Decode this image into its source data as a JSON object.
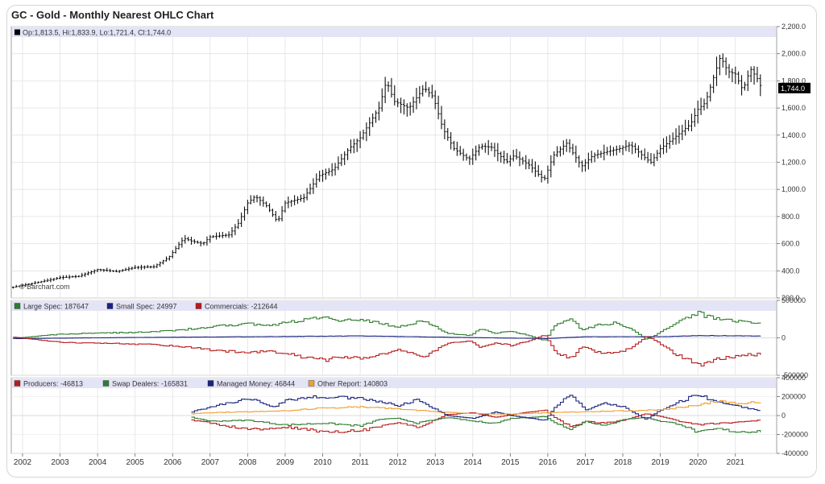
{
  "page_title": "GC - Gold - Monthly Nearest OHLC Chart",
  "chart_data": [
    {
      "type": "ohlc",
      "title": "GC - Gold - Monthly Nearest OHLC Chart",
      "legend": {
        "label": "Op:1,813.5, Hi:1,833.9, Lo:1,721.4, Cl:1,744.0",
        "color": "#000000"
      },
      "last_price_label": "1,744.0",
      "watermark": "© Barchart.com",
      "ylim": [
        200,
        2200
      ],
      "y_ticks": [
        "200.0",
        "400.0",
        "600.0",
        "800.0",
        "1,000.0",
        "1,200.0",
        "1,400.0",
        "1,600.0",
        "1,800.0",
        "2,000.0",
        "2,200.0"
      ],
      "x_ticks": [
        "2002",
        "2003",
        "2004",
        "2005",
        "2006",
        "2007",
        "2008",
        "2009",
        "2010",
        "2011",
        "2012",
        "2013",
        "2014",
        "2015",
        "2016",
        "2017",
        "2018",
        "2019",
        "2020",
        "2021"
      ],
      "xlim": [
        2001.7,
        2022.1
      ],
      "anchors_close": [
        [
          2001.75,
          280
        ],
        [
          2002.5,
          320
        ],
        [
          2003.0,
          350
        ],
        [
          2003.5,
          360
        ],
        [
          2004.0,
          410
        ],
        [
          2004.5,
          395
        ],
        [
          2005.0,
          425
        ],
        [
          2005.5,
          430
        ],
        [
          2005.9,
          500
        ],
        [
          2006.3,
          640
        ],
        [
          2006.5,
          620
        ],
        [
          2006.8,
          600
        ],
        [
          2007.0,
          650
        ],
        [
          2007.5,
          665
        ],
        [
          2007.75,
          750
        ],
        [
          2008.0,
          900
        ],
        [
          2008.2,
          950
        ],
        [
          2008.5,
          880
        ],
        [
          2008.8,
          760
        ],
        [
          2009.0,
          900
        ],
        [
          2009.5,
          940
        ],
        [
          2009.9,
          1100
        ],
        [
          2010.3,
          1150
        ],
        [
          2010.7,
          1300
        ],
        [
          2011.0,
          1380
        ],
        [
          2011.5,
          1600
        ],
        [
          2011.7,
          1800
        ],
        [
          2011.9,
          1650
        ],
        [
          2012.3,
          1600
        ],
        [
          2012.7,
          1750
        ],
        [
          2012.95,
          1680
        ],
        [
          2013.2,
          1450
        ],
        [
          2013.5,
          1300
        ],
        [
          2013.9,
          1220
        ],
        [
          2014.2,
          1320
        ],
        [
          2014.5,
          1310
        ],
        [
          2014.9,
          1200
        ],
        [
          2015.1,
          1250
        ],
        [
          2015.5,
          1180
        ],
        [
          2015.9,
          1070
        ],
        [
          2016.15,
          1250
        ],
        [
          2016.5,
          1340
        ],
        [
          2016.9,
          1170
        ],
        [
          2017.2,
          1250
        ],
        [
          2017.6,
          1280
        ],
        [
          2017.9,
          1300
        ],
        [
          2018.2,
          1330
        ],
        [
          2018.6,
          1230
        ],
        [
          2018.75,
          1200
        ],
        [
          2019.0,
          1300
        ],
        [
          2019.5,
          1410
        ],
        [
          2019.8,
          1480
        ],
        [
          2020.0,
          1590
        ],
        [
          2020.2,
          1640
        ],
        [
          2020.6,
          1980
        ],
        [
          2020.8,
          1870
        ],
        [
          2021.0,
          1850
        ],
        [
          2021.2,
          1730
        ],
        [
          2021.4,
          1890
        ],
        [
          2021.6,
          1810
        ],
        [
          2021.7,
          1744
        ]
      ]
    },
    {
      "type": "line",
      "legend_position": "top-left",
      "series": [
        {
          "name": "Large Spec: 187647",
          "color": "#2e7d2e",
          "anchors": [
            [
              2001.75,
              -5000
            ],
            [
              2003,
              50000
            ],
            [
              2005.5,
              80000
            ],
            [
              2006.3,
              110000
            ],
            [
              2007,
              150000
            ],
            [
              2008,
              190000
            ],
            [
              2008.5,
              160000
            ],
            [
              2009,
              200000
            ],
            [
              2009.5,
              240000
            ],
            [
              2010,
              280000
            ],
            [
              2010.5,
              230000
            ],
            [
              2011,
              250000
            ],
            [
              2011.5,
              200000
            ],
            [
              2012,
              140000
            ],
            [
              2012.7,
              230000
            ],
            [
              2013.3,
              60000
            ],
            [
              2013.9,
              30000
            ],
            [
              2014.2,
              120000
            ],
            [
              2014.6,
              60000
            ],
            [
              2015.0,
              90000
            ],
            [
              2015.5,
              30000
            ],
            [
              2015.9,
              -40000
            ],
            [
              2016.2,
              180000
            ],
            [
              2016.6,
              250000
            ],
            [
              2016.9,
              100000
            ],
            [
              2017.3,
              170000
            ],
            [
              2017.8,
              200000
            ],
            [
              2018.2,
              130000
            ],
            [
              2018.6,
              -20000
            ],
            [
              2018.8,
              20000
            ],
            [
              2019.2,
              140000
            ],
            [
              2019.6,
              240000
            ],
            [
              2020.0,
              330000
            ],
            [
              2020.2,
              290000
            ],
            [
              2020.6,
              240000
            ],
            [
              2020.9,
              230000
            ],
            [
              2021.3,
              210000
            ],
            [
              2021.7,
              187647
            ]
          ]
        },
        {
          "name": "Small Spec: 24997",
          "color": "#1a237e",
          "anchors": [
            [
              2001.75,
              -10000
            ],
            [
              2005,
              5000
            ],
            [
              2008,
              15000
            ],
            [
              2011,
              25000
            ],
            [
              2013,
              10000
            ],
            [
              2015.9,
              -10000
            ],
            [
              2017,
              15000
            ],
            [
              2019,
              15000
            ],
            [
              2020,
              30000
            ],
            [
              2021.7,
              24997
            ]
          ]
        },
        {
          "name": "Commercials: -212644",
          "color": "#b71c1c",
          "anchors": [
            [
              2001.75,
              10000
            ],
            [
              2003,
              -60000
            ],
            [
              2005.5,
              -90000
            ],
            [
              2006.3,
              -120000
            ],
            [
              2007,
              -160000
            ],
            [
              2008,
              -200000
            ],
            [
              2008.5,
              -170000
            ],
            [
              2009,
              -210000
            ],
            [
              2009.5,
              -260000
            ],
            [
              2010,
              -300000
            ],
            [
              2010.5,
              -250000
            ],
            [
              2011,
              -270000
            ],
            [
              2011.5,
              -220000
            ],
            [
              2012,
              -160000
            ],
            [
              2012.7,
              -250000
            ],
            [
              2013.3,
              -70000
            ],
            [
              2013.9,
              -40000
            ],
            [
              2014.2,
              -130000
            ],
            [
              2014.6,
              -70000
            ],
            [
              2015.0,
              -100000
            ],
            [
              2015.5,
              -40000
            ],
            [
              2015.9,
              40000
            ],
            [
              2016.2,
              -190000
            ],
            [
              2016.6,
              -270000
            ],
            [
              2016.9,
              -110000
            ],
            [
              2017.3,
              -190000
            ],
            [
              2017.8,
              -210000
            ],
            [
              2018.2,
              -140000
            ],
            [
              2018.6,
              20000
            ],
            [
              2018.8,
              -20000
            ],
            [
              2019.2,
              -160000
            ],
            [
              2019.6,
              -270000
            ],
            [
              2020.0,
              -370000
            ],
            [
              2020.2,
              -320000
            ],
            [
              2020.6,
              -270000
            ],
            [
              2020.9,
              -250000
            ],
            [
              2021.3,
              -230000
            ],
            [
              2021.7,
              -212644
            ]
          ]
        }
      ],
      "ylim": [
        -500000,
        500000
      ],
      "y_ticks": [
        "500000",
        "0",
        "-500000"
      ]
    },
    {
      "type": "line",
      "legend_position": "top-left",
      "series": [
        {
          "name": "Producers: -46813",
          "color": "#b71c1c",
          "anchors": [
            [
              2006.5,
              -50000
            ],
            [
              2007,
              -80000
            ],
            [
              2008,
              -150000
            ],
            [
              2009,
              -120000
            ],
            [
              2010,
              -170000
            ],
            [
              2011,
              -160000
            ],
            [
              2011.5,
              -120000
            ],
            [
              2012,
              -70000
            ],
            [
              2012.5,
              -130000
            ],
            [
              2013.3,
              10000
            ],
            [
              2014,
              30000
            ],
            [
              2014.6,
              -20000
            ],
            [
              2015,
              10000
            ],
            [
              2015.9,
              60000
            ],
            [
              2016.2,
              -30000
            ],
            [
              2016.6,
              -120000
            ],
            [
              2017,
              -60000
            ],
            [
              2017.5,
              -80000
            ],
            [
              2018,
              -50000
            ],
            [
              2018.6,
              20000
            ],
            [
              2019,
              -10000
            ],
            [
              2019.5,
              -60000
            ],
            [
              2020,
              -100000
            ],
            [
              2020.5,
              -80000
            ],
            [
              2021,
              -70000
            ],
            [
              2021.7,
              -46813
            ]
          ]
        },
        {
          "name": "Swap Dealers: -165831",
          "color": "#2e7d2e",
          "anchors": [
            [
              2006.5,
              -20000
            ],
            [
              2007,
              -60000
            ],
            [
              2008,
              -50000
            ],
            [
              2009,
              -100000
            ],
            [
              2010,
              -80000
            ],
            [
              2011,
              -110000
            ],
            [
              2011.5,
              -40000
            ],
            [
              2012,
              -30000
            ],
            [
              2012.5,
              -80000
            ],
            [
              2013.3,
              -20000
            ],
            [
              2014,
              -60000
            ],
            [
              2014.6,
              -80000
            ],
            [
              2015,
              -30000
            ],
            [
              2015.9,
              -10000
            ],
            [
              2016.2,
              -80000
            ],
            [
              2016.6,
              -140000
            ],
            [
              2017,
              -60000
            ],
            [
              2017.5,
              -110000
            ],
            [
              2018,
              -40000
            ],
            [
              2018.6,
              -20000
            ],
            [
              2019,
              -60000
            ],
            [
              2019.5,
              -90000
            ],
            [
              2020,
              -180000
            ],
            [
              2020.5,
              -140000
            ],
            [
              2021,
              -170000
            ],
            [
              2021.7,
              -165831
            ]
          ]
        },
        {
          "name": "Managed Money: 46844",
          "color": "#1a237e",
          "anchors": [
            [
              2006.5,
              40000
            ],
            [
              2007,
              90000
            ],
            [
              2008,
              180000
            ],
            [
              2008.7,
              90000
            ],
            [
              2009,
              170000
            ],
            [
              2010,
              200000
            ],
            [
              2011,
              180000
            ],
            [
              2011.5,
              150000
            ],
            [
              2012,
              100000
            ],
            [
              2012.5,
              170000
            ],
            [
              2013.3,
              0
            ],
            [
              2014,
              -30000
            ],
            [
              2014.6,
              40000
            ],
            [
              2015,
              0
            ],
            [
              2015.9,
              -50000
            ],
            [
              2016.2,
              100000
            ],
            [
              2016.6,
              220000
            ],
            [
              2017,
              60000
            ],
            [
              2017.5,
              130000
            ],
            [
              2018,
              90000
            ],
            [
              2018.6,
              -40000
            ],
            [
              2019,
              60000
            ],
            [
              2019.5,
              150000
            ],
            [
              2020,
              220000
            ],
            [
              2020.5,
              140000
            ],
            [
              2021,
              100000
            ],
            [
              2021.7,
              46844
            ]
          ]
        },
        {
          "name": "Other Report: 140803",
          "color": "#f0a030",
          "anchors": [
            [
              2006.5,
              20000
            ],
            [
              2007,
              30000
            ],
            [
              2008,
              40000
            ],
            [
              2009,
              50000
            ],
            [
              2010,
              80000
            ],
            [
              2011,
              90000
            ],
            [
              2012,
              70000
            ],
            [
              2013,
              40000
            ],
            [
              2014,
              20000
            ],
            [
              2015,
              15000
            ],
            [
              2016,
              30000
            ],
            [
              2017,
              40000
            ],
            [
              2018,
              50000
            ],
            [
              2019,
              60000
            ],
            [
              2020,
              110000
            ],
            [
              2020.5,
              160000
            ],
            [
              2021,
              130000
            ],
            [
              2021.7,
              140803
            ]
          ]
        }
      ],
      "ylim": [
        -400000,
        400000
      ],
      "y_ticks": [
        "400000",
        "200000",
        "0",
        "-200000",
        "-400000"
      ]
    }
  ]
}
